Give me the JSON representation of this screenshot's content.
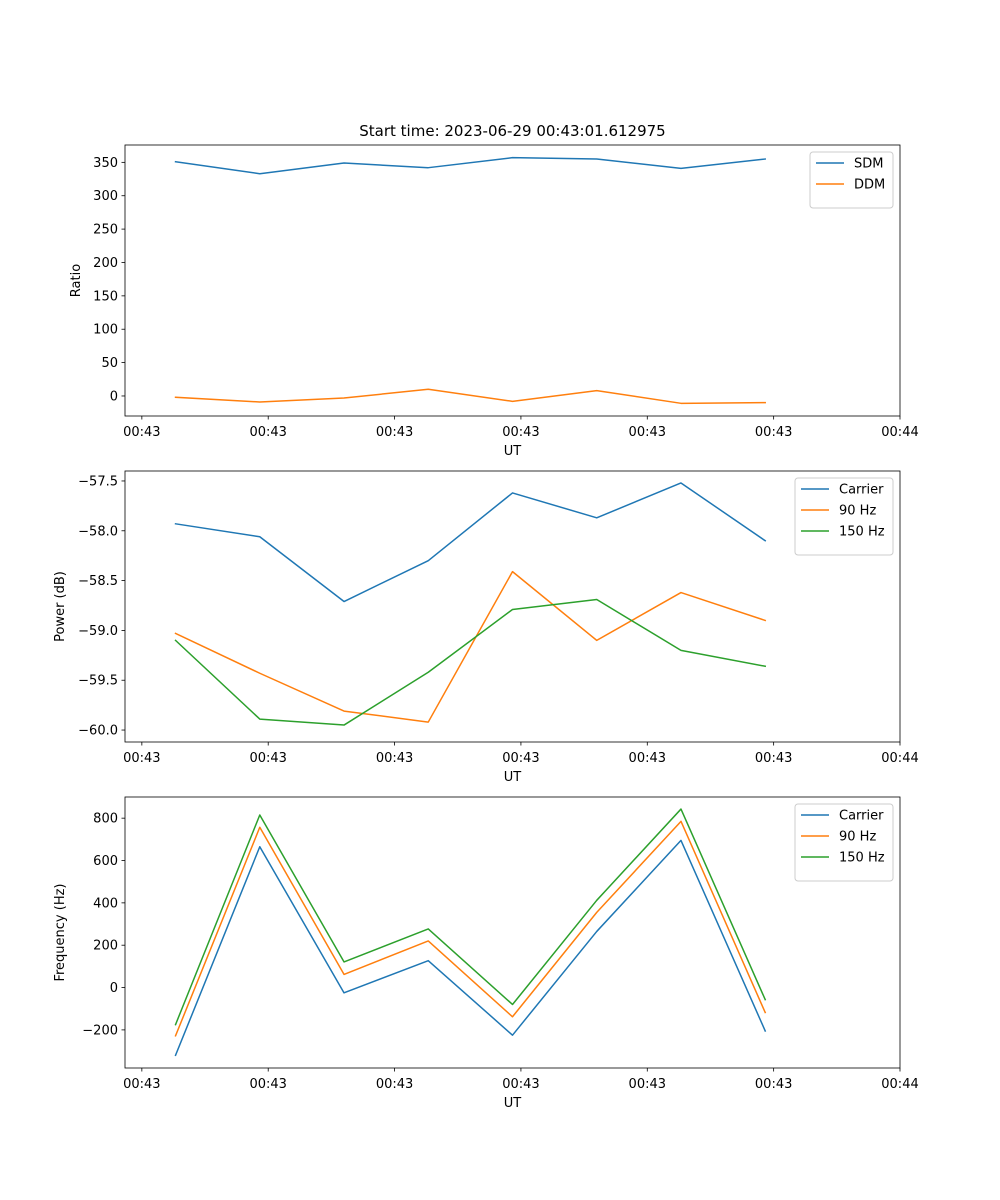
{
  "figure": {
    "title": "Start time: 2023-06-29 00:43:01.612975"
  },
  "series_colors": {
    "blue": "#1f77b4",
    "orange": "#ff7f0e",
    "green": "#2ca02c"
  },
  "chart_data": [
    {
      "type": "line",
      "id": "ratio",
      "title": "Start time: 2023-06-29 00:43:01.612975",
      "xlabel": "UT",
      "ylabel": "Ratio",
      "xlim": [
        -0.6,
        8.6
      ],
      "ylim": [
        -30,
        376
      ],
      "yticks": [
        0,
        50,
        100,
        150,
        200,
        250,
        300,
        350
      ],
      "ytick_labels": [
        "0",
        "50",
        "100",
        "150",
        "200",
        "250",
        "300",
        "350"
      ],
      "xticks": [
        -0.4,
        1.1,
        2.6,
        4.1,
        5.6,
        7.1,
        8.6
      ],
      "xtick_labels": [
        "00:43",
        "00:43",
        "00:43",
        "00:43",
        "00:43",
        "00:43",
        "00:44"
      ],
      "x": [
        0,
        1,
        2,
        3,
        4,
        5,
        6,
        7
      ],
      "series": [
        {
          "name": "SDM",
          "color": "#1f77b4",
          "values": [
            351,
            333,
            349,
            342,
            357,
            355,
            341,
            355
          ]
        },
        {
          "name": "DDM",
          "color": "#ff7f0e",
          "values": [
            -2,
            -9,
            -3,
            10,
            -8,
            8,
            -11,
            -10
          ]
        }
      ],
      "legend": "top-right",
      "grid": false
    },
    {
      "type": "line",
      "id": "power",
      "xlabel": "UT",
      "ylabel": "Power (dB)",
      "xlim": [
        -0.6,
        8.6
      ],
      "ylim": [
        -60.12,
        -57.4
      ],
      "yticks": [
        -60.0,
        -59.5,
        -59.0,
        -58.5,
        -58.0,
        -57.5
      ],
      "ytick_labels": [
        "−60.0",
        "−59.5",
        "−59.0",
        "−58.5",
        "−58.0",
        "−57.5"
      ],
      "xticks": [
        -0.4,
        1.1,
        2.6,
        4.1,
        5.6,
        7.1,
        8.6
      ],
      "xtick_labels": [
        "00:43",
        "00:43",
        "00:43",
        "00:43",
        "00:43",
        "00:43",
        "00:44"
      ],
      "x": [
        0,
        1,
        2,
        3,
        4,
        5,
        6,
        7
      ],
      "series": [
        {
          "name": "Carrier",
          "color": "#1f77b4",
          "values": [
            -57.93,
            -58.06,
            -58.71,
            -58.3,
            -57.62,
            -57.87,
            -57.52,
            -58.1
          ]
        },
        {
          "name": "90 Hz",
          "color": "#ff7f0e",
          "values": [
            -59.03,
            -59.43,
            -59.81,
            -59.92,
            -58.41,
            -59.1,
            -58.62,
            -58.9
          ]
        },
        {
          "name": "150 Hz",
          "color": "#2ca02c",
          "values": [
            -59.1,
            -59.89,
            -59.95,
            -59.42,
            -58.79,
            -58.69,
            -59.2,
            -59.36
          ]
        }
      ],
      "legend": "top-right",
      "grid": false
    },
    {
      "type": "line",
      "id": "frequency",
      "xlabel": "UT",
      "ylabel": "Frequency (Hz)",
      "xlim": [
        -0.6,
        8.6
      ],
      "ylim": [
        -380,
        900
      ],
      "yticks": [
        -200,
        0,
        200,
        400,
        600,
        800
      ],
      "ytick_labels": [
        "−200",
        "0",
        "200",
        "400",
        "600",
        "800"
      ],
      "xticks": [
        -0.4,
        1.1,
        2.6,
        4.1,
        5.6,
        7.1,
        8.6
      ],
      "xtick_labels": [
        "00:43",
        "00:43",
        "00:43",
        "00:43",
        "00:43",
        "00:43",
        "00:44"
      ],
      "x": [
        0,
        1,
        2,
        3,
        4,
        5,
        6,
        7
      ],
      "series": [
        {
          "name": "Carrier",
          "color": "#1f77b4",
          "values": [
            -320,
            665,
            -25,
            127,
            -225,
            265,
            695,
            -205
          ]
        },
        {
          "name": "90 Hz",
          "color": "#ff7f0e",
          "values": [
            -228,
            757,
            62,
            220,
            -138,
            355,
            785,
            -118
          ]
        },
        {
          "name": "150 Hz",
          "color": "#2ca02c",
          "values": [
            -175,
            815,
            121,
            277,
            -80,
            412,
            843,
            -57
          ]
        }
      ],
      "legend": "top-right",
      "grid": false
    }
  ]
}
